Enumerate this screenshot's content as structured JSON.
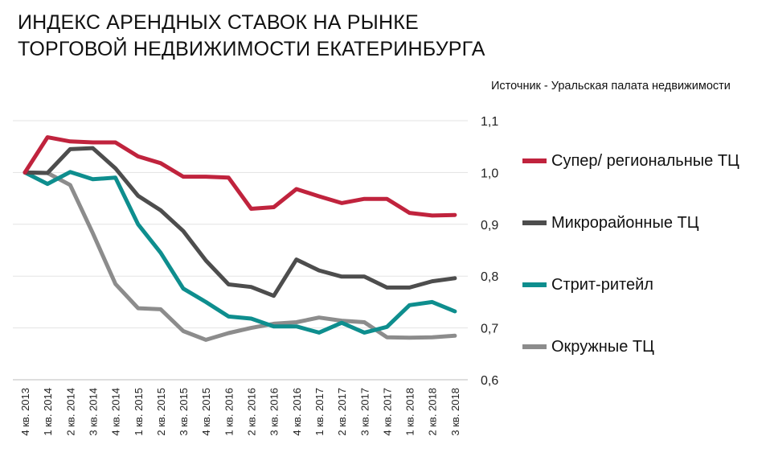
{
  "title_line1": "ИНДЕКС АРЕНДНЫХ СТАВОК НА РЫНКЕ",
  "title_line2": "ТОРГОВОЙ НЕДВИЖИМОСТИ ЕКАТЕРИНБУРГА",
  "source": "Источник - Уральская палата недвижимости",
  "chart_data": {
    "type": "line",
    "title": "ИНДЕКС АРЕНДНЫХ СТАВОК НА РЫНКЕ ТОРГОВОЙ НЕДВИЖИМОСТИ ЕКАТЕРИНБУРГА",
    "xlabel": "",
    "ylabel": "",
    "ylim": [
      0.6,
      1.1
    ],
    "yticks": [
      "1,1",
      "1,0",
      "0,9",
      "0,8",
      "0,7",
      "0,6"
    ],
    "ytick_values": [
      1.1,
      1.0,
      0.9,
      0.8,
      0.7,
      0.6
    ],
    "grid": true,
    "legend_position": "right",
    "categories": [
      "4 кв. 2013",
      "1 кв. 2014",
      "2 кв. 2014",
      "3 кв. 2014",
      "4 кв. 2014",
      "1 кв. 2015",
      "2 кв. 2015",
      "3 кв. 2015",
      "4 кв. 2015",
      "1 кв. 2016",
      "2 кв. 2016",
      "3 кв. 2016",
      "4 кв. 2016",
      "1 кв. 2017",
      "2 кв. 2017",
      "3 кв. 2017",
      "4 кв. 2017",
      "1 кв. 2018",
      "2 кв. 2018",
      "3 кв. 2018"
    ],
    "series": [
      {
        "name": "Супер/ региональные ТЦ",
        "color": "#c0233d",
        "values": [
          1.0,
          1.068,
          1.06,
          1.058,
          1.058,
          1.031,
          1.018,
          0.992,
          0.992,
          0.99,
          0.93,
          0.933,
          0.968,
          0.954,
          0.941,
          0.949,
          0.949,
          0.922,
          0.917,
          0.918
        ]
      },
      {
        "name": "Микрорайонные ТЦ",
        "color": "#4d4d4d",
        "values": [
          1.0,
          0.999,
          1.045,
          1.047,
          1.008,
          0.955,
          0.927,
          0.887,
          0.83,
          0.784,
          0.779,
          0.762,
          0.832,
          0.811,
          0.799,
          0.799,
          0.778,
          0.778,
          0.79,
          0.796
        ]
      },
      {
        "name": "Стрит-ритейл",
        "color": "#0e8e8e",
        "values": [
          1.0,
          0.978,
          1.001,
          0.987,
          0.99,
          0.9,
          0.845,
          0.776,
          0.75,
          0.722,
          0.718,
          0.703,
          0.703,
          0.691,
          0.71,
          0.691,
          0.702,
          0.744,
          0.75,
          0.732
        ]
      },
      {
        "name": "Окружные ТЦ",
        "color": "#8c8c8c",
        "values": [
          1.0,
          0.999,
          0.976,
          0.883,
          0.785,
          0.738,
          0.736,
          0.694,
          0.677,
          0.69,
          0.7,
          0.708,
          0.711,
          0.72,
          0.714,
          0.711,
          0.682,
          0.681,
          0.682,
          0.685
        ]
      }
    ]
  }
}
